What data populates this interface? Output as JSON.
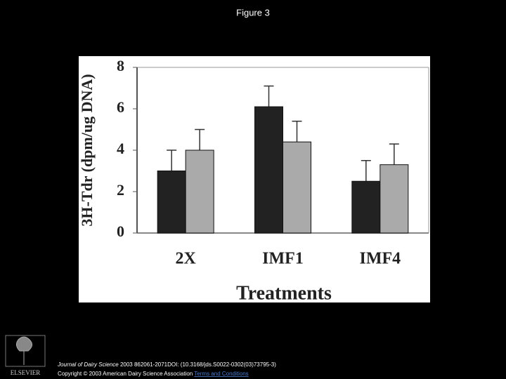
{
  "slide_title": "Figure 3",
  "chart_data": {
    "type": "bar",
    "ylabel": "3H-Tdr (dpm/ug DNA)",
    "xlabel": "Treatments",
    "categories": [
      "2X",
      "IMF1",
      "IMF4"
    ],
    "series": [
      {
        "color": "#222222",
        "values": [
          3.0,
          6.1,
          2.5
        ],
        "errors": [
          1.0,
          1.0,
          1.0
        ]
      },
      {
        "color": "#aaaaaa",
        "values": [
          4.0,
          4.4,
          3.3
        ],
        "errors": [
          1.0,
          1.0,
          1.0
        ]
      }
    ],
    "ylim": [
      0,
      8
    ],
    "yticks": [
      0,
      2,
      4,
      6,
      8
    ],
    "grid": false
  },
  "footer": {
    "logo_text": "ELSEVIER",
    "journal": "Journal of Dairy Science",
    "citation": " 2003 862061-2071DOI: (10.3168/jds.S0022-0302(03)73795-3)",
    "copyright": "Copyright © 2003 American Dairy Science Association",
    "link": "Terms and Conditions"
  }
}
